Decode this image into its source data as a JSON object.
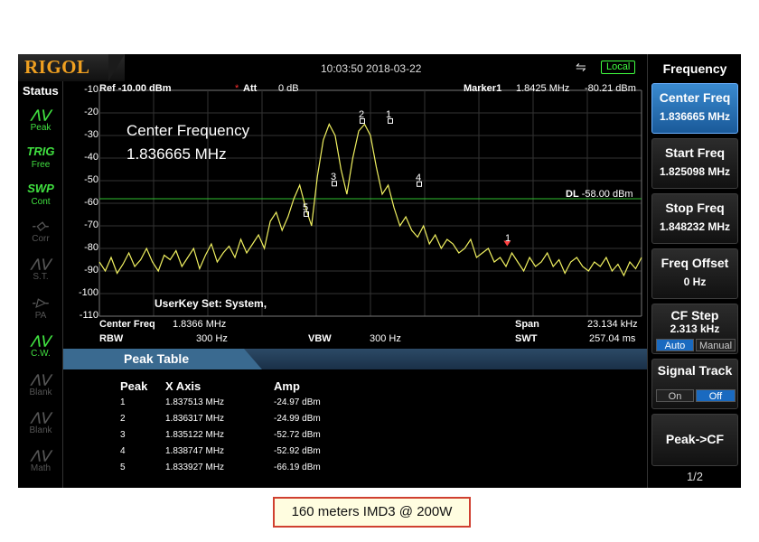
{
  "brand": "RIGOL",
  "clock": "10:03:50 2018-03-22",
  "local_badge": "Local",
  "status": {
    "title": "Status",
    "items": [
      {
        "icon": "peak-wave-icon",
        "label": "Peak",
        "icon_text": "⋀⋁",
        "state": "on"
      },
      {
        "icon": "trig-icon",
        "label": "Free",
        "icon_text": "TRIG",
        "state": "on"
      },
      {
        "icon": "swp-icon",
        "label": "Cont",
        "icon_text": "SWP",
        "state": "on"
      },
      {
        "icon": "corr-icon",
        "label": "Corr",
        "icon_text": "-◇-",
        "state": "off"
      },
      {
        "icon": "st-icon",
        "label": "S.T.",
        "icon_text": "⋀⋁",
        "state": "off"
      },
      {
        "icon": "pa-icon",
        "label": "PA",
        "icon_text": "-▷-",
        "state": "off"
      },
      {
        "icon": "cw-icon",
        "label": "C.W.",
        "icon_text": "⋀⋁",
        "state": "on"
      },
      {
        "icon": "blank-icon",
        "label": "Blank",
        "icon_text": "⋀⋁",
        "state": "off"
      },
      {
        "icon": "blank-icon",
        "label": "Blank",
        "icon_text": "⋀⋁",
        "state": "off"
      },
      {
        "icon": "math-icon",
        "label": "Math",
        "icon_text": "⋀⋁",
        "state": "off"
      }
    ]
  },
  "graph": {
    "ref": "Ref -10.00 dBm",
    "att_mark": "*",
    "att_label": "Att",
    "att_value": "0 dB",
    "marker_label": "Marker1",
    "marker_freq": "1.8425 MHz",
    "marker_amp": "-80.21 dBm",
    "y_ticks": [
      "-10",
      "-20",
      "-30",
      "-40",
      "-50",
      "-60",
      "-70",
      "-80",
      "-90",
      "-100",
      "-110"
    ],
    "center_freq_title": "Center Frequency",
    "center_freq_value": "1.836665 MHz",
    "dl_label": "DL",
    "dl_value": "-58.00 dBm",
    "userkey": "UserKey Set:   System,",
    "bottom": {
      "cf_label": "Center Freq",
      "cf_value": "1.8366 MHz",
      "rbw_label": "RBW",
      "rbw_value": "300 Hz",
      "vbw_label": "VBW",
      "vbw_value": "300 Hz",
      "span_label": "Span",
      "span_value": "23.134 kHz",
      "swt_label": "SWT",
      "swt_value": "257.04 ms"
    },
    "markers": [
      "1",
      "2",
      "3",
      "4",
      "5",
      "1"
    ]
  },
  "chart_data": {
    "type": "line",
    "ylim": [
      -110,
      -10
    ],
    "xlim_mhz": [
      1.825098,
      1.848232
    ],
    "display_line_dbm": -58.0,
    "peaks": [
      {
        "label": "1",
        "x_mhz": 1.837513,
        "y_dbm": -24.97
      },
      {
        "label": "2",
        "x_mhz": 1.836317,
        "y_dbm": -24.99
      },
      {
        "label": "3",
        "x_mhz": 1.835122,
        "y_dbm": -52.72
      },
      {
        "label": "4",
        "x_mhz": 1.838747,
        "y_dbm": -52.92
      },
      {
        "label": "5",
        "x_mhz": 1.833927,
        "y_dbm": -66.19
      }
    ],
    "marker1": {
      "x_mhz": 1.8425,
      "y_dbm": -80.21
    },
    "trace_dbm": [
      -86,
      -90,
      -84,
      -91,
      -87,
      -82,
      -88,
      -85,
      -80,
      -86,
      -90,
      -83,
      -85,
      -81,
      -88,
      -84,
      -80,
      -89,
      -83,
      -78,
      -86,
      -82,
      -79,
      -84,
      -76,
      -82,
      -78,
      -74,
      -80,
      -68,
      -64,
      -72,
      -66,
      -58,
      -52,
      -62,
      -70,
      -48,
      -32,
      -25,
      -30,
      -45,
      -56,
      -40,
      -28,
      -25,
      -30,
      -44,
      -56,
      -52,
      -62,
      -70,
      -66,
      -72,
      -75,
      -70,
      -78,
      -74,
      -80,
      -76,
      -78,
      -82,
      -80,
      -76,
      -84,
      -82,
      -80,
      -86,
      -84,
      -88,
      -82,
      -86,
      -90,
      -84,
      -88,
      -86,
      -82,
      -88,
      -85,
      -91,
      -86,
      -84,
      -88,
      -90,
      -86,
      -88,
      -84,
      -90,
      -87,
      -92,
      -86,
      -89,
      -84
    ]
  },
  "peak_table": {
    "title": "Peak Table",
    "headers": [
      "Peak",
      "X Axis",
      "Amp"
    ],
    "rows": [
      [
        "1",
        "1.837513 MHz",
        "-24.97 dBm"
      ],
      [
        "2",
        "1.836317 MHz",
        "-24.99 dBm"
      ],
      [
        "3",
        "1.835122 MHz",
        "-52.72 dBm"
      ],
      [
        "4",
        "1.838747 MHz",
        "-52.92 dBm"
      ],
      [
        "5",
        "1.833927 MHz",
        "-66.19 dBm"
      ]
    ]
  },
  "menu": {
    "title": "Frequency",
    "buttons": [
      {
        "label": "Center Freq",
        "value": "1.836665 MHz",
        "active": true
      },
      {
        "label": "Start Freq",
        "value": "1.825098 MHz",
        "active": false
      },
      {
        "label": "Stop Freq",
        "value": "1.848232 MHz",
        "active": false
      },
      {
        "label": "Freq Offset",
        "value": "0 Hz",
        "active": false
      },
      {
        "label": "CF Step",
        "value": "2.313 kHz",
        "active": false,
        "toggle": [
          "Auto",
          "Manual"
        ],
        "toggle_on": 0
      },
      {
        "label": "Signal Track",
        "value": "",
        "active": false,
        "toggle": [
          "On",
          "Off"
        ],
        "toggle_on": 1
      },
      {
        "label": "Peak->CF",
        "value": "",
        "active": false
      }
    ],
    "page": "1/2"
  },
  "caption": "160 meters IMD3 @ 200W",
  "colors": {
    "trace": "#f0f060",
    "display_line": "#30c030",
    "active_button": "#2a78c0",
    "brand": "#f0a020"
  }
}
